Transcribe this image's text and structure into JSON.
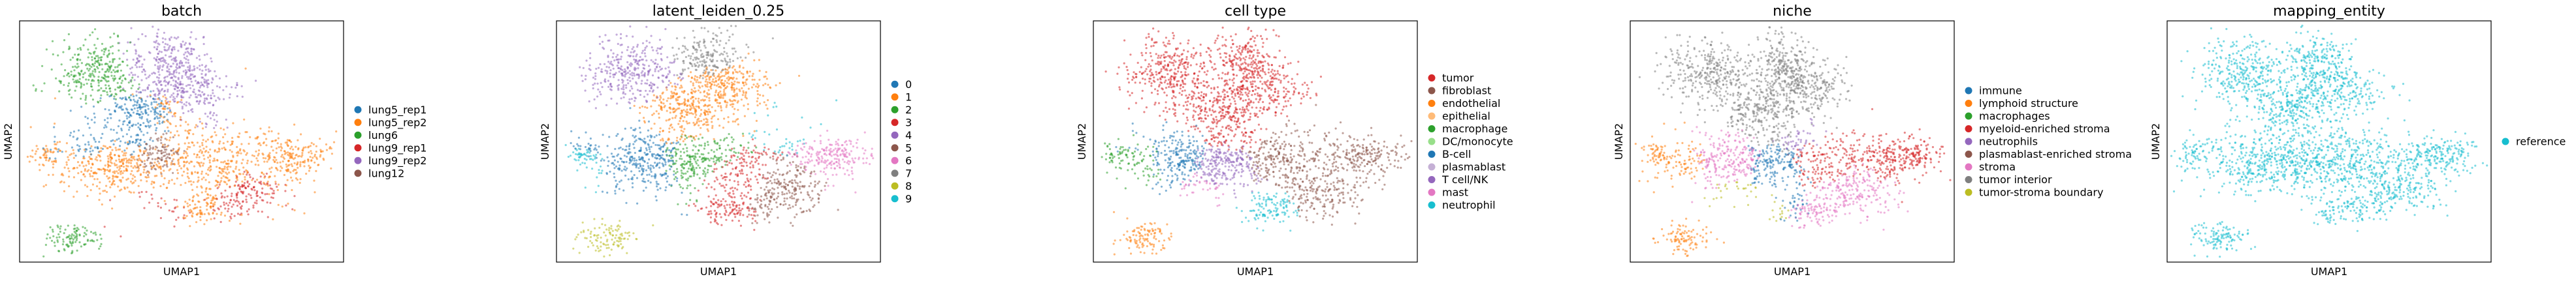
{
  "chart_data": [
    {
      "type": "scatter",
      "title": "batch",
      "xlabel": "UMAP1",
      "ylabel": "UMAP2",
      "grid": false,
      "legend_placement": "right",
      "series": [
        {
          "name": "lung5_rep1",
          "color": "#1f77b4"
        },
        {
          "name": "lung5_rep2",
          "color": "#ff7f0e"
        },
        {
          "name": "lung6",
          "color": "#2ca02c"
        },
        {
          "name": "lung9_rep1",
          "color": "#d62728"
        },
        {
          "name": "lung9_rep2",
          "color": "#9467bd"
        },
        {
          "name": "lung12",
          "color": "#8c564b"
        }
      ]
    },
    {
      "type": "scatter",
      "title": "latent_leiden_0.25",
      "xlabel": "UMAP1",
      "ylabel": "UMAP2",
      "grid": false,
      "legend_placement": "right",
      "series": [
        {
          "name": "0",
          "color": "#1f77b4"
        },
        {
          "name": "1",
          "color": "#ff7f0e"
        },
        {
          "name": "2",
          "color": "#2ca02c"
        },
        {
          "name": "3",
          "color": "#d62728"
        },
        {
          "name": "4",
          "color": "#9467bd"
        },
        {
          "name": "5",
          "color": "#8c564b"
        },
        {
          "name": "6",
          "color": "#e377c2"
        },
        {
          "name": "7",
          "color": "#7f7f7f"
        },
        {
          "name": "8",
          "color": "#bcbd22"
        },
        {
          "name": "9",
          "color": "#17becf"
        }
      ]
    },
    {
      "type": "scatter",
      "title": "cell type",
      "xlabel": "UMAP1",
      "ylabel": "UMAP2",
      "grid": false,
      "legend_placement": "right",
      "series": [
        {
          "name": "tumor",
          "color": "#d62728"
        },
        {
          "name": "fibroblast",
          "color": "#8c564b"
        },
        {
          "name": "endothelial",
          "color": "#ff7f0e"
        },
        {
          "name": "epithelial",
          "color": "#ffbb78"
        },
        {
          "name": "macrophage",
          "color": "#2ca02c"
        },
        {
          "name": "DC/monocyte",
          "color": "#98df8a"
        },
        {
          "name": "B-cell",
          "color": "#1f77b4"
        },
        {
          "name": "plasmablast",
          "color": "#c5b0d5"
        },
        {
          "name": "T cell/NK",
          "color": "#9467bd"
        },
        {
          "name": "mast",
          "color": "#e377c2"
        },
        {
          "name": "neutrophil",
          "color": "#17becf"
        }
      ]
    },
    {
      "type": "scatter",
      "title": "niche",
      "xlabel": "UMAP1",
      "ylabel": "UMAP2",
      "grid": false,
      "legend_placement": "right",
      "series": [
        {
          "name": "immune",
          "color": "#1f77b4"
        },
        {
          "name": "lymphoid structure",
          "color": "#ff7f0e"
        },
        {
          "name": "macrophages",
          "color": "#2ca02c"
        },
        {
          "name": "myeloid-enriched stroma",
          "color": "#d62728"
        },
        {
          "name": "neutrophils",
          "color": "#9467bd"
        },
        {
          "name": "plasmablast-enriched stroma",
          "color": "#8c564b"
        },
        {
          "name": "stroma",
          "color": "#e377c2"
        },
        {
          "name": "tumor interior",
          "color": "#7f7f7f"
        },
        {
          "name": "tumor-stroma boundary",
          "color": "#bcbd22"
        }
      ]
    },
    {
      "type": "scatter",
      "title": "mapping_entity",
      "xlabel": "UMAP1",
      "ylabel": "UMAP2",
      "grid": false,
      "legend_placement": "right",
      "series": [
        {
          "name": "reference",
          "color": "#17becf"
        }
      ]
    }
  ]
}
